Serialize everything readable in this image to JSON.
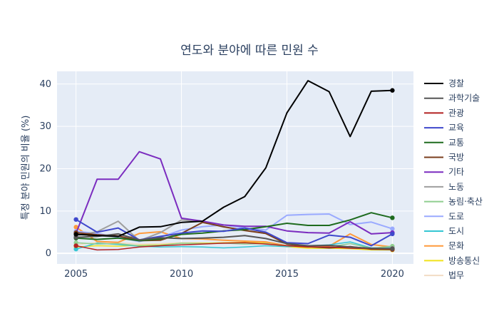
{
  "chart_data": {
    "type": "line",
    "title": "연도와 분야에 따른 민원 수",
    "xlabel": "",
    "ylabel": "특정 분야 민원의 비율 (%)",
    "x": [
      2005,
      2006,
      2007,
      2008,
      2009,
      2010,
      2011,
      2012,
      2013,
      2014,
      2015,
      2016,
      2017,
      2018,
      2019,
      2020
    ],
    "xlim": [
      2004.1,
      2021.0
    ],
    "ylim": [
      -2.5,
      43.0
    ],
    "xticks": [
      2005,
      2010,
      2015,
      2020
    ],
    "yticks": [
      0,
      10,
      20,
      30,
      40
    ],
    "grid": true,
    "legend_position": "right",
    "plot_background": "#e5ecf6",
    "series": [
      {
        "name": "경찰",
        "color": "#000000",
        "width": 2,
        "values": [
          4.5,
          4.2,
          4.0,
          6.2,
          6.3,
          7.3,
          7.6,
          10.9,
          13.4,
          20.2,
          33.2,
          40.8,
          38.2,
          27.6,
          38.3,
          38.5
        ]
      },
      {
        "name": "과학기술",
        "color": "#555555",
        "width": 2,
        "values": [
          3.8,
          4.0,
          4.6,
          3.2,
          3.7,
          3.5,
          3.6,
          3.8,
          4.2,
          3.5,
          2.3,
          1.8,
          1.9,
          1.5,
          1.2,
          1.1
        ]
      },
      {
        "name": "관광",
        "color": "#b22222",
        "width": 1.5,
        "values": [
          1.8,
          0.8,
          0.9,
          1.5,
          1.8,
          2.0,
          2.2,
          2.4,
          2.5,
          2.2,
          1.8,
          1.5,
          1.5,
          1.2,
          1.1,
          1.0
        ]
      },
      {
        "name": "교육",
        "color": "#3f48cc",
        "width": 2,
        "values": [
          8.0,
          5.0,
          6.0,
          3.2,
          4.0,
          4.8,
          5.3,
          5.2,
          6.0,
          5.0,
          2.5,
          2.3,
          4.3,
          3.8,
          1.8,
          4.6
        ]
      },
      {
        "name": "교통",
        "color": "#1e6b1e",
        "width": 2,
        "values": [
          3.6,
          3.3,
          3.6,
          3.0,
          3.4,
          4.5,
          4.8,
          5.3,
          5.6,
          6.3,
          7.1,
          6.6,
          6.6,
          7.9,
          9.6,
          8.4
        ]
      },
      {
        "name": "국방",
        "color": "#7a3e1c",
        "width": 2,
        "values": [
          4.9,
          4.4,
          4.1,
          3.0,
          3.1,
          4.7,
          7.3,
          6.3,
          5.4,
          4.7,
          2.2,
          1.6,
          1.3,
          1.6,
          1.0,
          0.9
        ]
      },
      {
        "name": "기타",
        "color": "#7b2cbf",
        "width": 2,
        "values": [
          4.7,
          17.5,
          17.5,
          24.0,
          22.3,
          8.3,
          7.6,
          6.7,
          6.4,
          6.4,
          5.3,
          4.9,
          4.8,
          7.5,
          4.6,
          4.9
        ]
      },
      {
        "name": "노동",
        "color": "#9e9e9e",
        "width": 2,
        "values": [
          4.2,
          5.1,
          7.6,
          3.0,
          4.9,
          7.9,
          7.5,
          6.2,
          5.5,
          4.7,
          2.5,
          1.6,
          1.4,
          1.5,
          1.1,
          1.2
        ]
      },
      {
        "name": "농림·축산",
        "color": "#8fce8f",
        "width": 1.5,
        "values": [
          2.5,
          2.2,
          2.3,
          1.8,
          1.9,
          2.4,
          2.3,
          2.4,
          2.2,
          2.3,
          1.8,
          1.6,
          1.5,
          2.3,
          1.2,
          1.7
        ]
      },
      {
        "name": "도로",
        "color": "#9aaaff",
        "width": 2,
        "values": [
          5.2,
          4.7,
          3.8,
          2.8,
          3.8,
          5.5,
          6.3,
          6.7,
          6.0,
          5.5,
          9.0,
          9.2,
          9.3,
          6.8,
          7.4,
          5.8
        ]
      },
      {
        "name": "도시",
        "color": "#35c6d3",
        "width": 1.5,
        "values": [
          1.0,
          2.4,
          2.1,
          1.7,
          1.5,
          1.6,
          1.5,
          1.3,
          1.5,
          1.8,
          1.6,
          1.8,
          2.0,
          2.7,
          1.3,
          1.4
        ]
      },
      {
        "name": "문화",
        "color": "#ff9a3c",
        "width": 2,
        "values": [
          6.2,
          2.8,
          2.6,
          4.7,
          5.1,
          3.5,
          3.4,
          3.1,
          2.9,
          2.7,
          1.8,
          1.5,
          1.7,
          4.6,
          2.1,
          1.5
        ]
      },
      {
        "name": "방송통신",
        "color": "#f0e21a",
        "width": 1.5,
        "values": [
          1.5,
          1.8,
          1.7,
          1.9,
          2.0,
          2.4,
          2.4,
          2.5,
          2.6,
          2.4,
          1.6,
          1.2,
          1.2,
          1.1,
          0.8,
          0.8
        ]
      },
      {
        "name": "법무",
        "color": "#f2dcc4",
        "width": 1.5,
        "values": [
          2.0,
          2.6,
          2.5,
          2.2,
          2.3,
          2.5,
          2.5,
          2.3,
          2.4,
          2.2,
          1.5,
          1.3,
          1.3,
          1.2,
          1.0,
          0.9
        ]
      }
    ]
  }
}
